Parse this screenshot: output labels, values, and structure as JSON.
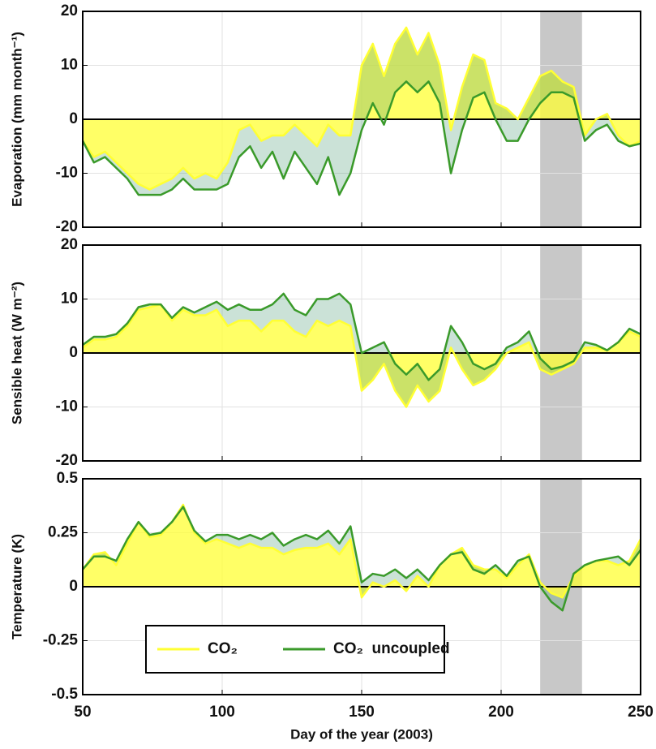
{
  "chart_data": [
    {
      "type": "line",
      "ylabel": "Evaporation (mm month⁻¹)",
      "x": [
        50,
        54,
        58,
        62,
        66,
        70,
        74,
        78,
        82,
        86,
        90,
        94,
        98,
        102,
        106,
        110,
        114,
        118,
        122,
        126,
        130,
        134,
        138,
        142,
        146,
        150,
        154,
        158,
        162,
        166,
        170,
        174,
        178,
        182,
        186,
        190,
        194,
        198,
        202,
        206,
        210,
        214,
        218,
        222,
        226,
        230,
        234,
        238,
        242,
        246,
        250
      ],
      "series": [
        {
          "name": "CO₂",
          "color": "#ffff33",
          "values": [
            -4,
            -7,
            -6,
            -8,
            -10,
            -12,
            -13,
            -12,
            -11,
            -9,
            -11,
            -10,
            -11,
            -8,
            -2,
            -1,
            -4,
            -3,
            -3,
            -1,
            -3,
            -5,
            -1,
            -3,
            -3,
            10,
            14,
            8,
            14,
            17,
            12,
            16,
            10,
            -2,
            6,
            12,
            11,
            3,
            2,
            0,
            4,
            8,
            9,
            7,
            6,
            -3,
            0,
            1,
            -3,
            -5,
            -4
          ]
        },
        {
          "name": "CO₂  uncoupled",
          "color": "#3a9a2a",
          "values": [
            -4,
            -8,
            -7,
            -9,
            -11,
            -14,
            -14,
            -14,
            -13,
            -11,
            -13,
            -13,
            -13,
            -12,
            -7,
            -5,
            -9,
            -6,
            -11,
            -6,
            -9,
            -12,
            -7,
            -14,
            -10,
            -2,
            3,
            -1,
            5,
            7,
            5,
            7,
            3,
            -10,
            -2,
            4,
            5,
            0,
            -4,
            -4,
            0,
            3,
            5,
            5,
            4,
            -4,
            -2,
            -1,
            -4,
            -5,
            -4.5
          ]
        }
      ],
      "xlim": [
        50,
        250
      ],
      "xticks": [
        50,
        100,
        150,
        200,
        250
      ],
      "ylim": [
        -20,
        20
      ],
      "yticks": [
        -20,
        -10,
        0,
        10,
        20
      ],
      "grid": true,
      "span": [
        214,
        229
      ]
    },
    {
      "type": "line",
      "ylabel": "Sensible heat (W m⁻²)",
      "x": [
        50,
        54,
        58,
        62,
        66,
        70,
        74,
        78,
        82,
        86,
        90,
        94,
        98,
        102,
        106,
        110,
        114,
        118,
        122,
        126,
        130,
        134,
        138,
        142,
        146,
        150,
        154,
        158,
        162,
        166,
        170,
        174,
        178,
        182,
        186,
        190,
        194,
        198,
        202,
        206,
        210,
        214,
        218,
        222,
        226,
        230,
        234,
        238,
        242,
        246,
        250
      ],
      "series": [
        {
          "name": "CO₂",
          "color": "#ffff33",
          "values": [
            1,
            2.5,
            2.5,
            3,
            5,
            8,
            8.5,
            9,
            6,
            8,
            7,
            7,
            8,
            5,
            6,
            6,
            4,
            6,
            6,
            4,
            3,
            6,
            5,
            6,
            5,
            -7,
            -5,
            -2,
            -7,
            -10,
            -6,
            -9,
            -7,
            1,
            -3,
            -6,
            -5,
            -3,
            0,
            1,
            2,
            -3,
            -4,
            -3,
            -2,
            1,
            1,
            0.5,
            2,
            4,
            3
          ]
        },
        {
          "name": "CO₂  uncoupled",
          "color": "#3a9a2a",
          "values": [
            1.5,
            3,
            3,
            3.5,
            5.5,
            8.5,
            9,
            9,
            6.5,
            8.5,
            7.5,
            8.5,
            9.5,
            8,
            9,
            8,
            8,
            9,
            11,
            8,
            7,
            10,
            10,
            11,
            9,
            0,
            1,
            2,
            -2,
            -4,
            -2,
            -5,
            -3,
            5,
            2,
            -2,
            -3,
            -2,
            1,
            2,
            4,
            -1,
            -3,
            -2.5,
            -1.5,
            2,
            1.5,
            0.5,
            2,
            4.5,
            3.5
          ]
        }
      ],
      "xlim": [
        50,
        250
      ],
      "xticks": [
        50,
        100,
        150,
        200,
        250
      ],
      "ylim": [
        -20,
        20
      ],
      "yticks": [
        -20,
        -10,
        0,
        10,
        20
      ],
      "grid": true,
      "span": [
        214,
        229
      ]
    },
    {
      "type": "line",
      "ylabel": "Temperature (K)",
      "xlabel": "Day of the year (2003)",
      "x": [
        50,
        54,
        58,
        62,
        66,
        70,
        74,
        78,
        82,
        86,
        90,
        94,
        98,
        102,
        106,
        110,
        114,
        118,
        122,
        126,
        130,
        134,
        138,
        142,
        146,
        150,
        154,
        158,
        162,
        166,
        170,
        174,
        178,
        182,
        186,
        190,
        194,
        198,
        202,
        206,
        210,
        214,
        218,
        222,
        226,
        230,
        234,
        238,
        242,
        246,
        250
      ],
      "series": [
        {
          "name": "CO₂",
          "color": "#ffff33",
          "values": [
            0.08,
            0.15,
            0.16,
            0.1,
            0.2,
            0.3,
            0.23,
            0.24,
            0.3,
            0.38,
            0.25,
            0.2,
            0.22,
            0.2,
            0.18,
            0.2,
            0.18,
            0.18,
            0.15,
            0.17,
            0.18,
            0.18,
            0.2,
            0.15,
            0.22,
            -0.05,
            0.02,
            0,
            0.03,
            -0.02,
            0.05,
            0,
            0.1,
            0.15,
            0.18,
            0.1,
            0.08,
            0.08,
            0.04,
            0.1,
            0.15,
            0.02,
            -0.03,
            -0.05,
            0.05,
            0.1,
            0.12,
            0.12,
            0.1,
            0.12,
            0.22
          ]
        },
        {
          "name": "CO₂  uncoupled",
          "color": "#3a9a2a",
          "values": [
            0.08,
            0.14,
            0.14,
            0.12,
            0.22,
            0.3,
            0.24,
            0.25,
            0.3,
            0.37,
            0.26,
            0.21,
            0.24,
            0.24,
            0.22,
            0.24,
            0.22,
            0.25,
            0.19,
            0.22,
            0.24,
            0.22,
            0.26,
            0.2,
            0.28,
            0.02,
            0.06,
            0.05,
            0.08,
            0.04,
            0.08,
            0.03,
            0.1,
            0.15,
            0.16,
            0.08,
            0.06,
            0.1,
            0.05,
            0.12,
            0.14,
            0,
            -0.07,
            -0.11,
            0.06,
            0.1,
            0.12,
            0.13,
            0.14,
            0.1,
            0.17
          ]
        }
      ],
      "xlim": [
        50,
        250
      ],
      "xticks": [
        50,
        100,
        150,
        200,
        250
      ],
      "ylim": [
        -0.5,
        0.5
      ],
      "yticks": [
        -0.5,
        -0.25,
        0,
        0.25,
        0.5
      ],
      "grid": true,
      "span": [
        214,
        229
      ],
      "legend": "lower center"
    }
  ]
}
